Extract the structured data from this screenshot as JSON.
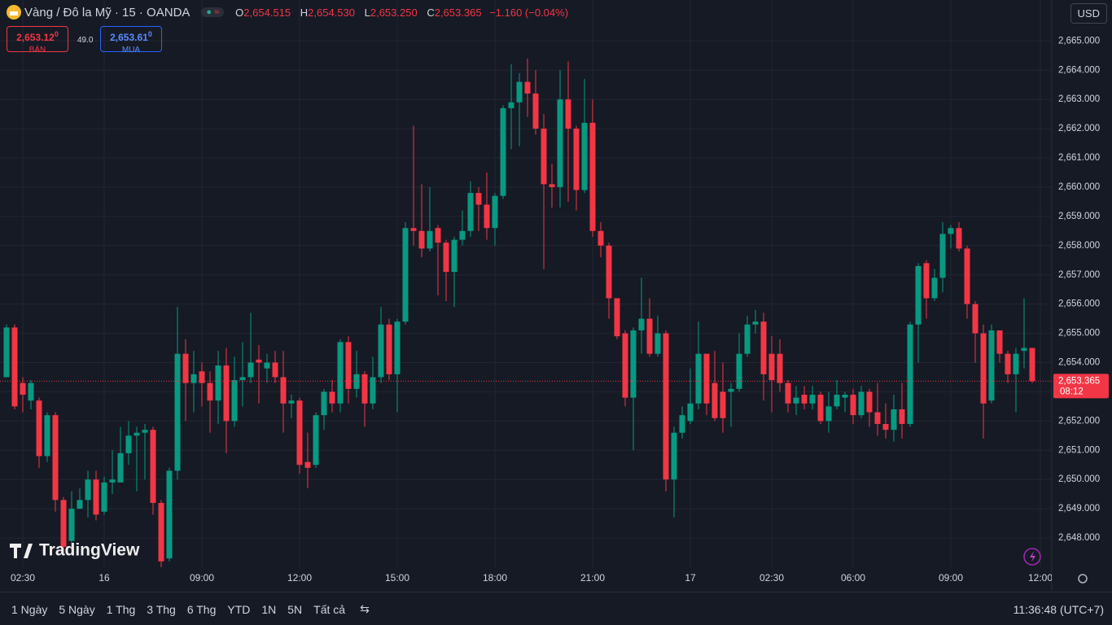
{
  "header": {
    "symbol": "Vàng / Đô la Mỹ · 15 · OANDA",
    "o_label": "O",
    "o": "2,654.515",
    "h_label": "H",
    "h": "2,654.530",
    "l_label": "L",
    "l": "2,653.250",
    "c_label": "C",
    "c": "2,653.365",
    "change": "−1.160 (−0.04%)",
    "currency": "USD"
  },
  "quote": {
    "sell_price": "2,653.12",
    "sell_sup": "0",
    "sell_label": "BÁN",
    "spread": "49.0",
    "buy_price": "2,653.61",
    "buy_sup": "0",
    "buy_label": "MUA"
  },
  "chart_data": {
    "type": "candlestick",
    "up_color": "#089981",
    "down_color": "#f23645",
    "grid": true,
    "ylim": [
      2647,
      2666.4
    ],
    "yticks": [
      {
        "value": 2648,
        "label": "2,648.000"
      },
      {
        "value": 2649,
        "label": "2,649.000"
      },
      {
        "value": 2650,
        "label": "2,650.000"
      },
      {
        "value": 2651,
        "label": "2,651.000"
      },
      {
        "value": 2652,
        "label": "2,652.000"
      },
      {
        "value": 2653,
        "label": "2,653.000"
      },
      {
        "value": 2654,
        "label": "2,654.000"
      },
      {
        "value": 2655,
        "label": "2,655.000"
      },
      {
        "value": 2656,
        "label": "2,656.000"
      },
      {
        "value": 2657,
        "label": "2,657.000"
      },
      {
        "value": 2658,
        "label": "2,658.000"
      },
      {
        "value": 2659,
        "label": "2,659.000"
      },
      {
        "value": 2660,
        "label": "2,660.000"
      },
      {
        "value": 2661,
        "label": "2,661.000"
      },
      {
        "value": 2662,
        "label": "2,662.000"
      },
      {
        "value": 2663,
        "label": "2,663.000"
      },
      {
        "value": 2664,
        "label": "2,664.000"
      },
      {
        "value": 2665,
        "label": "2,665.000"
      }
    ],
    "categories": [
      null,
      null,
      "02:30",
      null,
      null,
      null,
      null,
      null,
      null,
      null,
      null,
      null,
      "16",
      null,
      null,
      null,
      null,
      null,
      null,
      null,
      null,
      null,
      null,
      null,
      "09:00",
      null,
      null,
      null,
      null,
      null,
      null,
      null,
      null,
      null,
      null,
      null,
      "12:00",
      null,
      null,
      null,
      null,
      null,
      null,
      null,
      null,
      null,
      null,
      null,
      "15:00",
      null,
      null,
      null,
      null,
      null,
      null,
      null,
      null,
      null,
      null,
      null,
      "18:00",
      null,
      null,
      null,
      null,
      null,
      null,
      null,
      null,
      null,
      null,
      null,
      "21:00",
      null,
      null,
      null,
      null,
      null,
      null,
      null,
      null,
      null,
      null,
      null,
      "17",
      null,
      null,
      null,
      null,
      null,
      null,
      null,
      null,
      null,
      "02:30",
      null,
      null,
      null,
      null,
      null,
      null,
      null,
      null,
      null,
      "06:00",
      null,
      null,
      null,
      null,
      null,
      null,
      null,
      null,
      null,
      null,
      null,
      "09:00",
      null,
      null,
      null,
      null,
      null,
      null,
      null,
      null,
      null,
      null,
      "12:00"
    ],
    "open": [
      2653.5,
      2655.2,
      2653.3,
      2652.7,
      2652.7,
      2650.8,
      2652.2,
      2649.3,
      2647.9,
      2649,
      2649.3,
      2650,
      2648.9,
      2649.9,
      2649.9,
      2650.9,
      2651.5,
      2651.6,
      2651.7,
      2649.2,
      2647.3,
      2650.3,
      2654.3,
      2653.3,
      2653.7,
      2653.3,
      2652.7,
      2653.9,
      2652,
      2653.4,
      2653.5,
      2654.1,
      2653.8,
      2654,
      2653.5,
      2652.6,
      2652.7,
      2650.6,
      2650.5,
      2652.2,
      2653,
      2652.6,
      2654.7,
      2653.1,
      2653.6,
      2652.6,
      2653.5,
      2655.3,
      2653.6,
      2655.4,
      2658.6,
      2658.5,
      2657.9,
      2658.6,
      2658.1,
      2657.1,
      2658.2,
      2658.5,
      2659.8,
      2659.4,
      2658.6,
      2659.7,
      2662.7,
      2662.9,
      2663.6,
      2663.2,
      2662,
      2660.1,
      2660,
      2663,
      2662,
      2659.9,
      2662.2,
      2658.5,
      2658,
      2656.2,
      2655,
      2652.8,
      2655.1,
      2655.5,
      2654.3,
      2655,
      2650,
      2651.6,
      2652,
      2652.6,
      2654.3,
      2653.3,
      2653,
      2653,
      2653.1,
      2654.3,
      2655.3,
      2655.4,
      2654.3,
      2654.3,
      2653.3,
      2652.6,
      2652.9,
      2652.6,
      2652.9,
      2652,
      2652.5,
      2652.8,
      2652.9,
      2652.2,
      2653,
      2652.3,
      2651.9,
      2651.7,
      2652.4,
      2651.9,
      2655.3,
      2657.4,
      2656.2,
      2656.9,
      2658.4,
      2658.6,
      2657.9,
      2656,
      2655,
      2652.7,
      2655.1,
      2654.3,
      2653.6,
      2654.4,
      2654.5,
      null
    ],
    "high": [
      2655.3,
      2655.3,
      2653.5,
      2653.4,
      2652.8,
      2652.3,
      2652.3,
      2649.4,
      2649.6,
      2649.7,
      2650.3,
      2650.3,
      2650.1,
      2651,
      2651.8,
      2652,
      2651.8,
      2651.9,
      2651.8,
      2649.3,
      2650.4,
      2655.9,
      2654.8,
      2654.4,
      2654,
      2653.7,
      2654.4,
      2654.5,
      2654.2,
      2654.7,
      2655.7,
      2654.6,
      2654.3,
      2654.4,
      2654.4,
      2652.9,
      2652.8,
      2651.6,
      2652.3,
      2653.1,
      2653.4,
      2654.8,
      2654.9,
      2654.4,
      2653.7,
      2654.2,
      2655.9,
      2655.5,
      2655.5,
      2658.8,
      2662.1,
      2660.1,
      2660,
      2658.7,
      2658.2,
      2658.3,
      2659.2,
      2660.2,
      2660,
      2660.5,
      2659.8,
      2662.8,
      2664.2,
      2663.9,
      2664.4,
      2664,
      2662.5,
      2660.8,
      2664,
      2664.3,
      2662.1,
      2663.7,
      2663,
      2658.8,
      2658.1,
      2656.2,
      2655.1,
      2655.2,
      2656.9,
      2656.2,
      2655.6,
      2655.1,
      2651.8,
      2652.5,
      2653.8,
      2655.4,
      2654.3,
      2654.4,
      2654,
      2653.3,
      2655,
      2655.6,
      2655.8,
      2655.7,
      2654.9,
      2654.8,
      2653.4,
      2653.2,
      2653.2,
      2653.2,
      2653,
      2653,
      2653.4,
      2653,
      2653.1,
      2653.2,
      2653.1,
      2653.3,
      2652.6,
      2652.9,
      2653.3,
      2655.4,
      2657.4,
      2657.5,
      2657.2,
      2658.8,
      2658.7,
      2658.8,
      2658,
      2656.1,
      2655.3,
      2655.3,
      2655.1,
      2654.4,
      2654.5,
      2656.2,
      2654.5,
      null
    ],
    "low": [
      2653.5,
      2652.4,
      2652.3,
      2652.4,
      2650.4,
      2650.6,
      2648.9,
      2647.4,
      2647.5,
      2649,
      2648.7,
      2648.6,
      2648.8,
      2649.5,
      2649.9,
      2650.5,
      2649.6,
      2650,
      2648.8,
      2647,
      2647.2,
      2650,
      2652,
      2652.3,
      2652.5,
      2651.6,
      2651.9,
      2650.9,
      2651.8,
      2652.5,
      2653.3,
      2652.6,
      2653.3,
      2653.3,
      2651.6,
      2652.1,
      2650.2,
      2649.7,
      2650.4,
      2651.7,
      2652.3,
      2652.3,
      2652.6,
      2652.8,
      2651.8,
      2652.4,
      2653.3,
      2653.4,
      2652.3,
      2655.3,
      2658,
      2657.6,
      2657.8,
      2656.3,
      2656.1,
      2655.9,
      2658,
      2658.3,
      2658.5,
      2658.2,
      2658,
      2659.6,
      2661.3,
      2661.4,
      2662.4,
      2661.8,
      2657.2,
      2659.3,
      2659.3,
      2659.5,
      2659.2,
      2659.8,
      2658.3,
      2657.6,
      2655.5,
      2654.8,
      2652.5,
      2651,
      2654.3,
      2654.2,
      2654.2,
      2649.6,
      2648.7,
      2651.4,
      2651.9,
      2652.4,
      2652.2,
      2652,
      2651.6,
      2651.8,
      2653,
      2654.2,
      2655,
      2652.7,
      2652.3,
      2653,
      2652.3,
      2652.2,
      2652.4,
      2652.4,
      2651.9,
      2651.6,
      2652.4,
      2652.3,
      2651.9,
      2652.1,
      2651.8,
      2651.5,
      2651.4,
      2651.3,
      2651.4,
      2651.8,
      2654,
      2655.5,
      2656.1,
      2656.4,
      2657.9,
      2657.8,
      2655.5,
      2654,
      2651.4,
      2652.6,
      2654,
      2653.3,
      2652.3,
      2653.8,
      2653.3,
      null
    ],
    "close": [
      2655.2,
      2652.5,
      2652.9,
      2653.3,
      2650.8,
      2652.2,
      2649.3,
      2647.7,
      2649,
      2649.3,
      2650,
      2648.8,
      2649.9,
      2650,
      2650.9,
      2651.5,
      2651.6,
      2651.7,
      2649.2,
      2647.2,
      2650.3,
      2654.3,
      2653.3,
      2653.6,
      2653.3,
      2652.7,
      2653.9,
      2652,
      2653.4,
      2653.5,
      2654,
      2654,
      2654,
      2653.5,
      2652.6,
      2652.7,
      2650.5,
      2650.4,
      2652.2,
      2653,
      2652.6,
      2654.7,
      2653.1,
      2653.6,
      2652.6,
      2653.5,
      2655.3,
      2653.6,
      2655.4,
      2658.6,
      2658.5,
      2657.9,
      2658.5,
      2658.1,
      2657.1,
      2658.2,
      2658.5,
      2659.8,
      2659.4,
      2658.6,
      2659.7,
      2662.7,
      2662.9,
      2663.6,
      2663.2,
      2662,
      2660.1,
      2660,
      2663,
      2662,
      2659.9,
      2662.2,
      2658.5,
      2658,
      2656.2,
      2654.9,
      2652.8,
      2655.1,
      2655.5,
      2654.3,
      2655,
      2650,
      2651.6,
      2652.2,
      2652.6,
      2654.3,
      2652.6,
      2652.1,
      2652.1,
      2653.1,
      2654.3,
      2655.3,
      2655.4,
      2653.6,
      2653.4,
      2653.3,
      2652.6,
      2652.8,
      2652.6,
      2652.9,
      2652,
      2652.5,
      2652.9,
      2652.9,
      2652.2,
      2653,
      2652.3,
      2651.9,
      2651.7,
      2652.4,
      2651.9,
      2655.3,
      2657.3,
      2656.2,
      2656.9,
      2658.4,
      2658.6,
      2657.9,
      2656,
      2655,
      2652.6,
      2655.1,
      2654.3,
      2653.6,
      2654.3,
      2654.5,
      2653.365,
      null
    ],
    "last_price": {
      "value": 2653.365,
      "label": "2,653.365"
    },
    "countdown": "08:12",
    "watermark": "TradingView"
  },
  "toolbar": {
    "ranges": [
      "1 Ngày",
      "5 Ngày",
      "1 Thg",
      "3 Thg",
      "6 Thg",
      "YTD",
      "1N",
      "5N",
      "Tất cả"
    ],
    "clock": "11:36:48 (UTC+7)"
  }
}
